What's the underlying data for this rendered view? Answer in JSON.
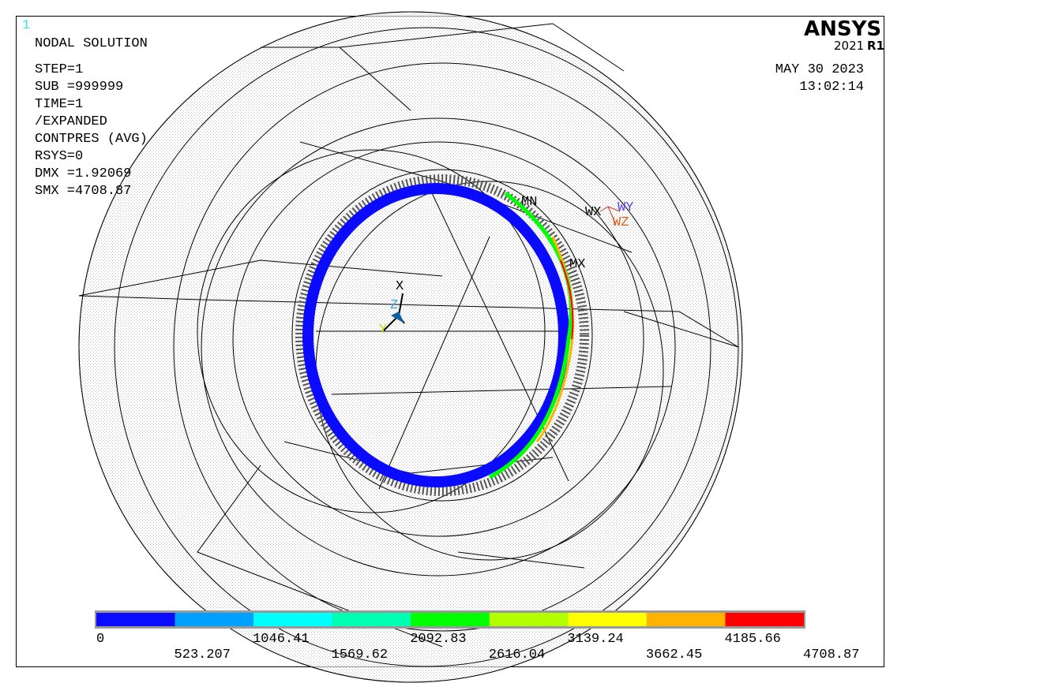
{
  "window_number": "1",
  "info": {
    "title": "NODAL SOLUTION",
    "lines": [
      "STEP=1",
      "SUB =999999",
      "TIME=1",
      "/EXPANDED",
      "CONTPRES (AVG)",
      "RSYS=0",
      "DMX =1.92069",
      "SMX =4708.87"
    ]
  },
  "logo": {
    "brand": "ANSYS",
    "year": "2021",
    "release": "R1"
  },
  "date": "MAY 30 2023",
  "time": "13:02:14",
  "labels": {
    "mn": "MN",
    "mx": "MX",
    "wx": "WX",
    "wy": "WY",
    "wz": "WZ",
    "x": "X",
    "y": "Y",
    "z": "Z"
  },
  "legend": {
    "colors": [
      "#0a0aff",
      "#00a0ff",
      "#00ffff",
      "#00ffb2",
      "#00ff00",
      "#b2ff00",
      "#ffff00",
      "#ffb200",
      "#ff0000"
    ],
    "labels": [
      "0",
      "523.207",
      "1046.41",
      "1569.62",
      "2092.83",
      "2616.04",
      "3139.24",
      "3662.45",
      "4185.66",
      "4708.87"
    ]
  }
}
